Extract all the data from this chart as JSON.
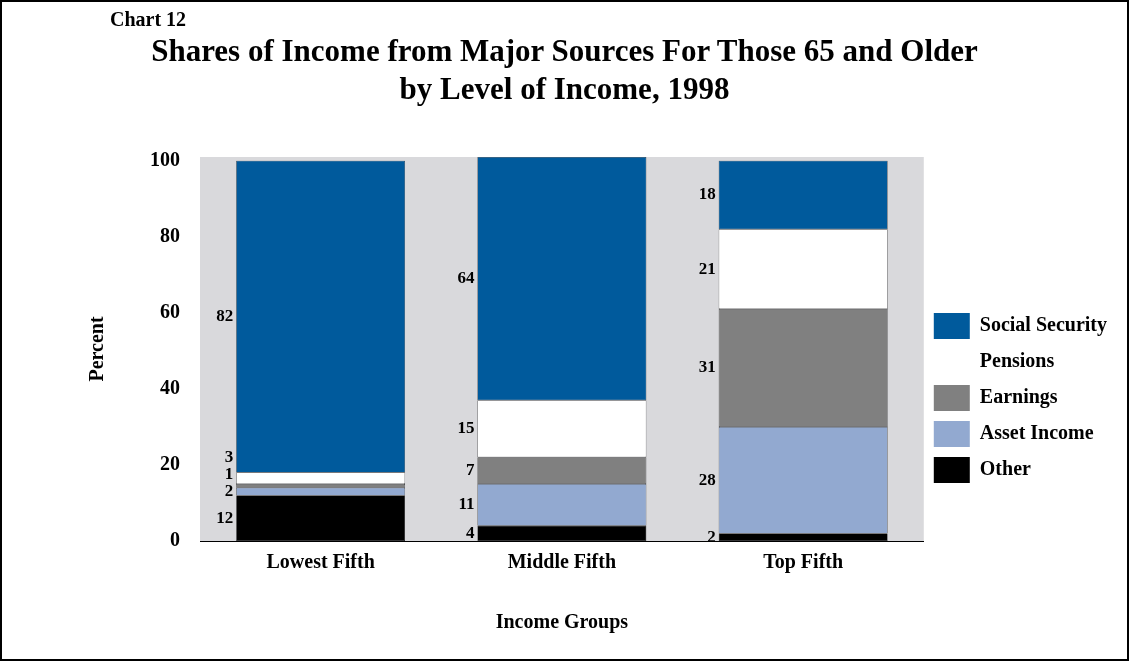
{
  "chart_data": {
    "type": "bar",
    "title": "Shares of Income from Major Sources For Those 65 and Older by Level of Income, 1998",
    "annotations": [
      "Chart 12"
    ],
    "xlabel": "Income Groups",
    "ylabel": "Percent",
    "categories": [
      "Lowest Fifth",
      "Middle Fifth",
      "Top Fifth"
    ],
    "stacked": true,
    "series": [
      {
        "name": "Other",
        "color": "#000000",
        "values": [
          12,
          4,
          2
        ]
      },
      {
        "name": "Asset Income",
        "color": "#92a9d0",
        "values": [
          2,
          11,
          28
        ]
      },
      {
        "name": "Earnings",
        "color": "#808080",
        "values": [
          1,
          7,
          31
        ]
      },
      {
        "name": "Pensions",
        "color": "#ffffff",
        "values": [
          3,
          15,
          21
        ]
      },
      {
        "name": "Social Security",
        "color": "#005a9c",
        "values": [
          82,
          64,
          18
        ]
      }
    ],
    "ylim": [
      0,
      101
    ],
    "yticks": [
      0,
      20,
      40,
      60,
      80,
      100
    ],
    "grid": false,
    "legend": "right",
    "data_labels": true
  }
}
